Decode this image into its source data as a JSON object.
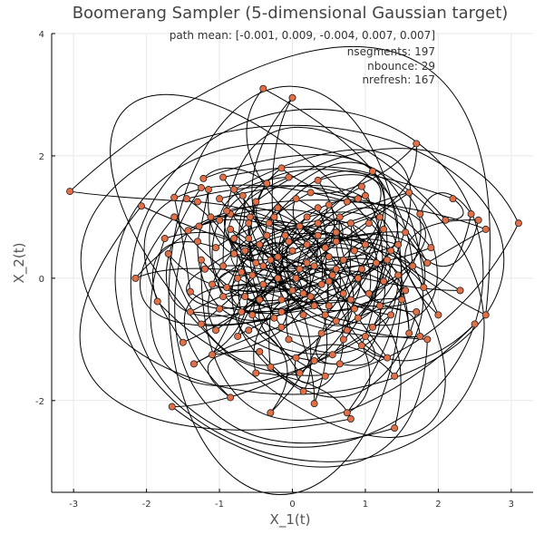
{
  "chart_data": {
    "type": "line",
    "title": "Boomerang Sampler (5-dimensional Gaussian target)",
    "xlabel": "X_1(t)",
    "ylabel": "X_2(t)",
    "xlim": [
      -3.3,
      3.3
    ],
    "ylim": [
      -3.5,
      4.0
    ],
    "x_ticks": [
      -3,
      -2,
      -1,
      0,
      1,
      2,
      3
    ],
    "y_ticks": [
      -2,
      0,
      2,
      4
    ],
    "grid": true,
    "legend": "none",
    "annotations": [
      "path mean: [-0.001, 0.009, -0.004, 0.007, 0.007]",
      "nsegments: 197",
      "nbounce: 29",
      "nrefresh: 167"
    ],
    "colors": {
      "path": "#000000",
      "events": "#e26f46",
      "event_edge": "#222222",
      "grid": "#e8e8e8",
      "axis": "#000000"
    },
    "n_segments": 197,
    "n_bounce": 29,
    "n_refresh": 167,
    "events": [
      [
        -3.05,
        1.42
      ],
      [
        -2.15,
        0.0
      ],
      [
        -2.07,
        1.18
      ],
      [
        -1.85,
        -0.38
      ],
      [
        -1.65,
        -2.1
      ],
      [
        -1.62,
        1.32
      ],
      [
        -1.62,
        1.0
      ],
      [
        -1.45,
        1.3
      ],
      [
        -1.43,
        0.78
      ],
      [
        -1.4,
        -0.22
      ],
      [
        -1.35,
        -1.4
      ],
      [
        -1.3,
        1.25
      ],
      [
        -1.28,
        0.85
      ],
      [
        -1.25,
        0.3
      ],
      [
        -1.25,
        -0.75
      ],
      [
        -1.25,
        1.48
      ],
      [
        -1.22,
        1.63
      ],
      [
        -1.15,
        1.45
      ],
      [
        -1.12,
        1.0
      ],
      [
        -1.1,
        -1.25
      ],
      [
        -1.05,
        0.5
      ],
      [
        -1.0,
        -0.5
      ],
      [
        -1.0,
        1.3
      ],
      [
        -0.95,
        0.2
      ],
      [
        -0.9,
        -0.15
      ],
      [
        -0.85,
        1.05
      ],
      [
        -0.85,
        -1.95
      ],
      [
        -0.85,
        0.8
      ],
      [
        -0.8,
        0.4
      ],
      [
        -0.75,
        -0.95
      ],
      [
        -0.7,
        0.1
      ],
      [
        -0.68,
        1.35
      ],
      [
        -0.65,
        -0.3
      ],
      [
        -0.6,
        0.65
      ],
      [
        -0.58,
        1.0
      ],
      [
        -0.55,
        -0.6
      ],
      [
        -0.5,
        0.25
      ],
      [
        -0.5,
        1.25
      ],
      [
        -0.45,
        -1.2
      ],
      [
        -0.45,
        0.55
      ],
      [
        -0.4,
        3.1
      ],
      [
        -0.4,
        -0.1
      ],
      [
        -0.35,
        1.55
      ],
      [
        -0.32,
        0.9
      ],
      [
        -0.3,
        -2.2
      ],
      [
        -0.3,
        0.3
      ],
      [
        -0.25,
        -0.65
      ],
      [
        -0.2,
        1.15
      ],
      [
        -0.2,
        0.0
      ],
      [
        -0.15,
        1.8
      ],
      [
        -0.15,
        -0.35
      ],
      [
        -0.1,
        0.7
      ],
      [
        -0.05,
        1.65
      ],
      [
        -0.05,
        -1.0
      ],
      [
        0.0,
        2.95
      ],
      [
        0.0,
        0.45
      ],
      [
        0.0,
        -0.2
      ],
      [
        0.05,
        1.3
      ],
      [
        0.05,
        -1.3
      ],
      [
        0.1,
        0.15
      ],
      [
        0.1,
        0.85
      ],
      [
        0.15,
        -0.6
      ],
      [
        0.15,
        -1.85
      ],
      [
        0.2,
        0.55
      ],
      [
        0.2,
        1.0
      ],
      [
        0.25,
        -0.3
      ],
      [
        0.3,
        -2.05
      ],
      [
        0.3,
        0.2
      ],
      [
        0.3,
        -1.35
      ],
      [
        0.35,
        0.9
      ],
      [
        0.35,
        1.6
      ],
      [
        0.4,
        -0.1
      ],
      [
        0.4,
        -0.9
      ],
      [
        0.45,
        0.5
      ],
      [
        0.5,
        -0.45
      ],
      [
        0.5,
        1.2
      ],
      [
        0.55,
        0.05
      ],
      [
        0.55,
        -1.25
      ],
      [
        0.6,
        -0.7
      ],
      [
        0.6,
        0.75
      ],
      [
        0.65,
        1.0
      ],
      [
        0.7,
        -0.25
      ],
      [
        0.7,
        0.3
      ],
      [
        0.75,
        -2.2
      ],
      [
        0.75,
        -0.85
      ],
      [
        0.8,
        -2.3
      ],
      [
        0.8,
        0.9
      ],
      [
        0.85,
        -0.5
      ],
      [
        0.9,
        1.3
      ],
      [
        0.9,
        0.0
      ],
      [
        0.95,
        -1.1
      ],
      [
        1.0,
        0.55
      ],
      [
        1.0,
        1.35
      ],
      [
        1.05,
        -0.25
      ],
      [
        1.1,
        -0.8
      ],
      [
        1.15,
        0.25
      ],
      [
        1.2,
        -0.45
      ],
      [
        1.25,
        0.8
      ],
      [
        1.3,
        -1.3
      ],
      [
        1.35,
        0.45
      ],
      [
        1.4,
        -1.6
      ],
      [
        1.4,
        -2.45
      ],
      [
        1.45,
        0.05
      ],
      [
        1.5,
        -0.35
      ],
      [
        1.55,
        0.75
      ],
      [
        1.6,
        -0.9
      ],
      [
        1.65,
        0.2
      ],
      [
        1.7,
        2.2
      ],
      [
        1.7,
        -0.55
      ],
      [
        1.75,
        1.05
      ],
      [
        1.8,
        -0.15
      ],
      [
        1.85,
        -1.0
      ],
      [
        1.9,
        0.5
      ],
      [
        2.0,
        -0.6
      ],
      [
        2.1,
        0.95
      ],
      [
        2.2,
        1.3
      ],
      [
        2.3,
        -0.2
      ],
      [
        2.45,
        1.05
      ],
      [
        2.5,
        -0.75
      ],
      [
        2.55,
        0.95
      ],
      [
        2.65,
        0.8
      ],
      [
        2.65,
        -0.6
      ],
      [
        3.1,
        0.9
      ],
      [
        -0.95,
        1.65
      ],
      [
        0.95,
        1.5
      ],
      [
        -1.7,
        0.4
      ],
      [
        1.75,
        -0.95
      ],
      [
        -0.75,
        0.0
      ],
      [
        0.65,
        -1.4
      ],
      [
        0.45,
        -0.6
      ],
      [
        -0.55,
        0.05
      ],
      [
        1.25,
        -0.05
      ],
      [
        -1.05,
        -0.85
      ],
      [
        1.05,
        0.9
      ],
      [
        0.25,
        1.4
      ],
      [
        -0.3,
        -1.45
      ],
      [
        0.8,
        -0.35
      ],
      [
        -0.8,
        0.65
      ],
      [
        0.05,
        0.0
      ],
      [
        -0.2,
        0.35
      ],
      [
        0.5,
        0.35
      ],
      [
        -0.45,
        -0.35
      ],
      [
        1.45,
        0.55
      ],
      [
        -1.4,
        -0.55
      ],
      [
        0.7,
        -1.0
      ],
      [
        -0.9,
        1.1
      ],
      [
        0.35,
        1.15
      ],
      [
        -0.15,
        -0.8
      ],
      [
        0.95,
        0.15
      ],
      [
        -0.6,
        -0.85
      ],
      [
        1.85,
        0.25
      ],
      [
        -1.75,
        0.65
      ],
      [
        0.1,
        -1.55
      ],
      [
        -0.35,
        0.7
      ],
      [
        0.6,
        0.6
      ],
      [
        1.1,
        1.75
      ],
      [
        -1.1,
        -0.1
      ],
      [
        0.3,
        -0.45
      ],
      [
        -0.65,
        0.45
      ],
      [
        1.35,
        -0.6
      ],
      [
        -0.25,
        1.0
      ],
      [
        0.85,
        0.45
      ],
      [
        -1.2,
        0.15
      ],
      [
        0.45,
        -1.6
      ],
      [
        -0.5,
        -1.55
      ],
      [
        1.6,
        1.4
      ],
      [
        -1.5,
        -1.05
      ],
      [
        0.2,
        0.25
      ],
      [
        -0.05,
        0.6
      ],
      [
        0.75,
        1.25
      ],
      [
        -0.95,
        -0.3
      ],
      [
        1.2,
        1.0
      ],
      [
        -1.3,
        0.6
      ],
      [
        0.5,
        -0.05
      ],
      [
        -0.7,
        -0.55
      ],
      [
        1.0,
        -0.95
      ],
      [
        -0.4,
        0.2
      ],
      [
        0.15,
        -0.25
      ],
      [
        -1.0,
        0.95
      ],
      [
        1.55,
        -0.2
      ],
      [
        -0.15,
        -0.55
      ],
      [
        0.6,
        0.15
      ],
      [
        0.35,
        0.7
      ],
      [
        -0.8,
        1.45
      ],
      [
        1.3,
        0.3
      ],
      [
        0.9,
        -0.65
      ],
      [
        -0.6,
        0.9
      ]
    ]
  }
}
